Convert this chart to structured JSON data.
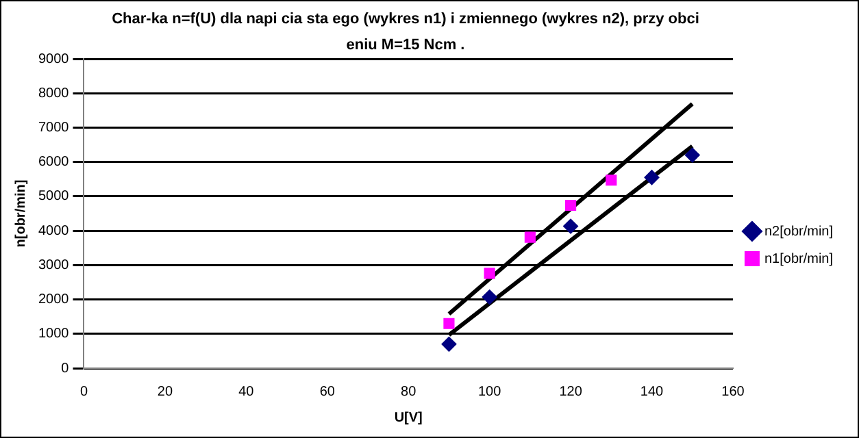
{
  "chart_data": {
    "type": "scatter",
    "title": "Char-ka  n=f(U)  dla napi  cia sta ego (wykres n1) i zmiennego (wykres n2),  przy obci    eniu M=15 Ncm .",
    "xlabel": "U[V]",
    "ylabel": "n[obr/min]",
    "xlim": [
      0,
      160
    ],
    "xticks": [
      0,
      20,
      40,
      60,
      80,
      100,
      120,
      140,
      160
    ],
    "ylim": [
      0,
      9000
    ],
    "yticks": [
      0,
      1000,
      2000,
      3000,
      4000,
      5000,
      6000,
      7000,
      8000,
      9000
    ],
    "grid": "y",
    "legend": "right",
    "series": [
      {
        "name": "n2[obr/min]",
        "color": "#000080",
        "marker": "diamond",
        "x": [
          90,
          100,
          120,
          140,
          150
        ],
        "values": [
          700,
          2070,
          4130,
          5550,
          6200
        ]
      },
      {
        "name": "n1[obr/min]",
        "color": "#ff00ff",
        "marker": "square",
        "x": [
          90,
          100,
          110,
          120,
          130
        ],
        "values": [
          1300,
          2760,
          3810,
          4740,
          5470
        ]
      },
      {
        "type": "line",
        "color": "#000000",
        "marker": "none",
        "x": [
          90,
          150
        ],
        "values": [
          1580,
          7690
        ]
      },
      {
        "type": "line",
        "color": "#000000",
        "marker": "none",
        "x": [
          90,
          150
        ],
        "values": [
          970,
          6460
        ]
      }
    ]
  }
}
